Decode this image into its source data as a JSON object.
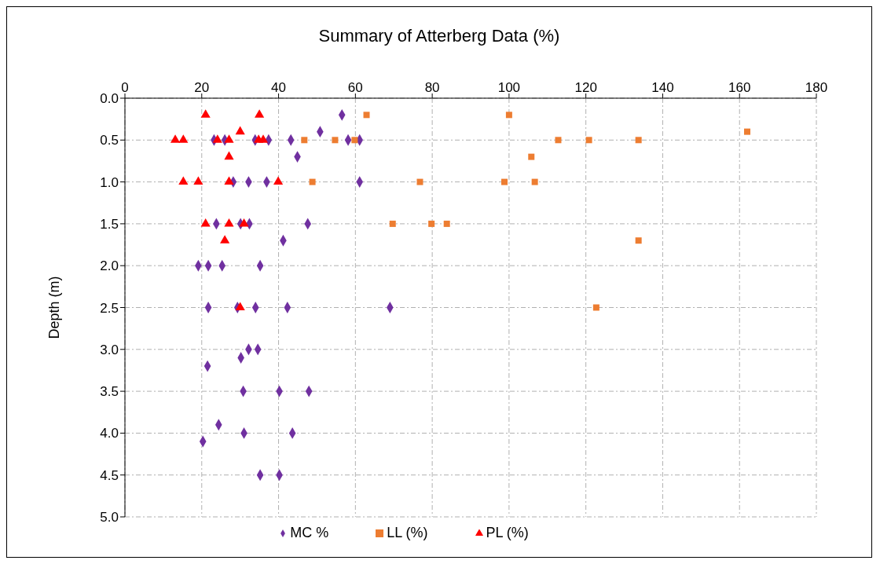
{
  "chart_data": {
    "type": "scatter",
    "title": "Summary of Atterberg Data (%)",
    "ylabel": "Depth (m)",
    "xlim": [
      0,
      180
    ],
    "xticks": [
      0,
      20,
      40,
      60,
      80,
      100,
      120,
      140,
      160,
      180
    ],
    "ylim": [
      5,
      0
    ],
    "yticks": [
      {
        "value": 0,
        "label": "0.0"
      },
      0.5,
      {
        "value": 1,
        "label": "1.0"
      },
      1.5,
      {
        "value": 2,
        "label": "2.0"
      },
      2.5,
      {
        "value": 3,
        "label": "3.0"
      },
      3.5,
      {
        "value": 4,
        "label": "4.0"
      },
      4.5,
      {
        "value": 5,
        "label": "5.0"
      }
    ],
    "grid": true,
    "legend": "bottom",
    "series": [
      {
        "name": "MC %",
        "color": "#7030a0",
        "marker": "diamond",
        "x": [
          56.5,
          50.8,
          23.2,
          26.0,
          33.9,
          37.4,
          43.2,
          58.1,
          61.1,
          44.9,
          28.2,
          32.2,
          36.9,
          61.1,
          23.8,
          30.1,
          32.4,
          47.6,
          41.2,
          19.1,
          21.7,
          25.3,
          35.2,
          21.7,
          29.3,
          34.0,
          42.3,
          69.0,
          32.2,
          34.6,
          30.2,
          21.5,
          30.8,
          40.2,
          47.9,
          24.4,
          31.0,
          43.6,
          20.3,
          35.2,
          40.2
        ],
        "values": [
          0.2,
          0.4,
          0.5,
          0.5,
          0.5,
          0.5,
          0.5,
          0.5,
          0.5,
          0.7,
          1.0,
          1.0,
          1.0,
          1.0,
          1.5,
          1.5,
          1.5,
          1.5,
          1.7,
          2.0,
          2.0,
          2.0,
          2.0,
          2.5,
          2.5,
          2.5,
          2.5,
          2.5,
          3.0,
          3.0,
          3.1,
          3.2,
          3.5,
          3.5,
          3.5,
          3.9,
          4.0,
          4.0,
          4.1,
          4.5,
          4.5
        ]
      },
      {
        "name": "LL (%)",
        "color": "#ed7d31",
        "marker": "square",
        "x": [
          62.9,
          100,
          162,
          46.7,
          54.7,
          59.8,
          112.8,
          120.8,
          133.7,
          105.8,
          48.8,
          76.8,
          98.8,
          106.7,
          69.7,
          79.8,
          83.8,
          133.7,
          122.7
        ],
        "values": [
          0.2,
          0.2,
          0.4,
          0.5,
          0.5,
          0.5,
          0.5,
          0.5,
          0.5,
          0.7,
          1.0,
          1.0,
          1.0,
          1.0,
          1.5,
          1.5,
          1.5,
          1.7,
          2.5
        ]
      },
      {
        "name": "PL (%)",
        "color": "#ff0000",
        "marker": "triangle",
        "x": [
          21.0,
          35.0,
          30.0,
          13.1,
          15.2,
          24.1,
          27.1,
          34.8,
          36.0,
          27.1,
          15.2,
          19.1,
          27.1,
          39.9,
          21.0,
          27.1,
          31.0,
          26.0,
          30.0
        ],
        "values": [
          0.2,
          0.2,
          0.4,
          0.5,
          0.5,
          0.5,
          0.5,
          0.5,
          0.5,
          0.7,
          1.0,
          1.0,
          1.0,
          1.0,
          1.5,
          1.5,
          1.5,
          1.7,
          2.5
        ]
      }
    ]
  }
}
